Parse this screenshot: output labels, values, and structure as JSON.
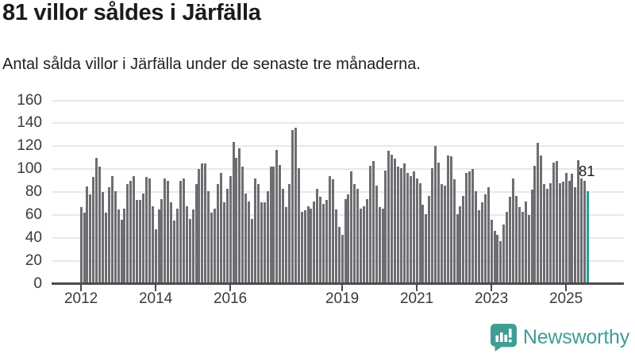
{
  "header": {
    "title": "81 villor såldes i Järfälla",
    "subtitle": "Antal sålda villor i Järfälla under de senaste tre månaderna."
  },
  "chart_data": {
    "type": "bar",
    "title": "81 villor såldes i Järfälla",
    "subtitle": "Antal sålda villor i Järfälla under de senaste tre månaderna.",
    "interval": "monthly",
    "x_start": "2012-01",
    "x_end": "2025-08",
    "ylim": [
      0,
      160
    ],
    "yticks": [
      0,
      20,
      40,
      60,
      80,
      100,
      120,
      140,
      160
    ],
    "xticks": [
      {
        "label": "2012",
        "index": 0
      },
      {
        "label": "2014",
        "index": 24
      },
      {
        "label": "2016",
        "index": 48
      },
      {
        "label": "2019",
        "index": 84
      },
      {
        "label": "2021",
        "index": 108
      },
      {
        "label": "2023",
        "index": 132
      },
      {
        "label": "2025",
        "index": 156
      }
    ],
    "values": [
      67,
      62,
      85,
      78,
      93,
      110,
      102,
      80,
      62,
      84,
      94,
      81,
      65,
      56,
      66,
      87,
      90,
      94,
      73,
      73,
      79,
      93,
      92,
      68,
      48,
      65,
      74,
      92,
      90,
      71,
      55,
      66,
      90,
      92,
      68,
      57,
      65,
      87,
      100,
      105,
      105,
      81,
      62,
      66,
      87,
      97,
      71,
      83,
      94,
      124,
      110,
      118,
      102,
      79,
      72,
      57,
      92,
      87,
      71,
      71,
      81,
      102,
      102,
      117,
      104,
      83,
      67,
      87,
      134,
      136,
      101,
      63,
      64,
      68,
      66,
      72,
      83,
      76,
      70,
      73,
      94,
      91,
      65,
      50,
      43,
      74,
      78,
      98,
      87,
      83,
      66,
      68,
      74,
      103,
      107,
      86,
      67,
      66,
      99,
      116,
      113,
      109,
      102,
      101,
      105,
      97,
      94,
      98,
      92,
      88,
      69,
      61,
      77,
      101,
      120,
      106,
      87,
      86,
      112,
      111,
      91,
      61,
      68,
      77,
      97,
      98,
      100,
      81,
      64,
      71,
      78,
      84,
      56,
      46,
      43,
      37,
      52,
      63,
      76,
      92,
      77,
      67,
      63,
      72,
      60,
      82,
      103,
      123,
      112,
      87,
      83,
      88,
      106,
      107,
      88,
      89,
      97,
      90,
      96,
      84,
      108,
      92,
      90,
      81
    ],
    "bar_color": "#6d6d72",
    "highlight": {
      "index": 163,
      "value": 81,
      "label": "81",
      "color": "#2a9f9e"
    },
    "grid": true,
    "legend": false
  },
  "branding": {
    "name": "Newsworthy",
    "color": "#3E9D94"
  }
}
